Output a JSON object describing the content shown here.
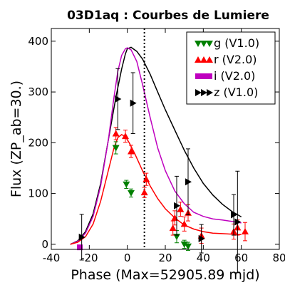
{
  "chart_data": {
    "type": "scatter",
    "title": "03D1aq : Courbes de Lumiere",
    "xlabel": "Phase (Max=52905.89 mjd)",
    "ylabel": "Flux (ZP_ab=30.)",
    "xlim": [
      -40,
      80
    ],
    "ylim": [
      -10,
      425
    ],
    "xticks": [
      -40,
      -20,
      0,
      20,
      40,
      60,
      80
    ],
    "yticks": [
      0,
      100,
      200,
      300,
      400
    ],
    "legend_position": "top-right",
    "max_marker_x": 9,
    "series": [
      {
        "name": "g (V1.0)",
        "color": "#008000",
        "marker": "triangle-down",
        "points": [
          {
            "x": -6,
            "y": 190,
            "err": 12
          },
          {
            "x": -0.5,
            "y": 118,
            "err": 8
          },
          {
            "x": 2,
            "y": 101,
            "err": 8
          },
          {
            "x": 26,
            "y": 15,
            "err": 12
          },
          {
            "x": 30,
            "y": 0,
            "err": 8
          },
          {
            "x": 32,
            "y": -4,
            "err": 8
          }
        ]
      },
      {
        "name": "r (V2.0)",
        "color": "#ff0000",
        "marker": "triangle-up",
        "points": [
          {
            "x": -6,
            "y": 218,
            "err": 12
          },
          {
            "x": -1,
            "y": 213,
            "err": 12
          },
          {
            "x": 2,
            "y": 183,
            "err": 12
          },
          {
            "x": 9,
            "y": 102,
            "err": 10
          },
          {
            "x": 10,
            "y": 128,
            "err": 12
          },
          {
            "x": 24,
            "y": 32,
            "err": 14
          },
          {
            "x": 25,
            "y": 52,
            "err": 14
          },
          {
            "x": 28,
            "y": 69,
            "err": 14
          },
          {
            "x": 30,
            "y": 40,
            "err": 14
          },
          {
            "x": 32,
            "y": 62,
            "err": 16
          },
          {
            "x": 39,
            "y": 17,
            "err": 15
          },
          {
            "x": 56,
            "y": 25,
            "err": 15
          },
          {
            "x": 58,
            "y": 33,
            "err": 15
          },
          {
            "x": 62,
            "y": 25,
            "err": 18
          }
        ]
      },
      {
        "name": "i (V2.0)",
        "color": "#bf00bf",
        "marker": "square",
        "points": [
          {
            "x": -25,
            "y": -6,
            "err": 0
          }
        ]
      },
      {
        "name": "z (V1.0)",
        "color": "#000000",
        "marker": "triangle-right",
        "points": [
          {
            "x": -24,
            "y": 14,
            "err": 45
          },
          {
            "x": -5,
            "y": 286,
            "err": 60
          },
          {
            "x": 3,
            "y": 278,
            "err": 60
          },
          {
            "x": 26,
            "y": 76,
            "err": 58
          },
          {
            "x": 32,
            "y": 123,
            "err": 65
          },
          {
            "x": 39,
            "y": 11,
            "err": 28
          },
          {
            "x": 56,
            "y": 58,
            "err": 40
          },
          {
            "x": 58,
            "y": 44,
            "err": 100
          }
        ]
      }
    ],
    "curves": [
      {
        "color": "#000000",
        "points": [
          [
            -30,
            0
          ],
          [
            -26,
            7
          ],
          [
            -22,
            25
          ],
          [
            -18,
            60
          ],
          [
            -14,
            120
          ],
          [
            -10,
            205
          ],
          [
            -6,
            290
          ],
          [
            -3,
            345
          ],
          [
            -1,
            375
          ],
          [
            0,
            385
          ],
          [
            2,
            388
          ],
          [
            5,
            380
          ],
          [
            8,
            365
          ],
          [
            12,
            335
          ],
          [
            16,
            300
          ],
          [
            20,
            265
          ],
          [
            25,
            225
          ],
          [
            30,
            185
          ],
          [
            35,
            150
          ],
          [
            40,
            120
          ],
          [
            45,
            97
          ],
          [
            50,
            79
          ],
          [
            55,
            65
          ],
          [
            60,
            54
          ]
        ]
      },
      {
        "color": "#bf00bf",
        "points": [
          [
            -30,
            0
          ],
          [
            -26,
            6
          ],
          [
            -22,
            22
          ],
          [
            -18,
            55
          ],
          [
            -14,
            115
          ],
          [
            -10,
            205
          ],
          [
            -7,
            290
          ],
          [
            -5,
            340
          ],
          [
            -3,
            372
          ],
          [
            -1,
            385
          ],
          [
            0,
            387
          ],
          [
            2,
            383
          ],
          [
            5,
            360
          ],
          [
            8,
            315
          ],
          [
            12,
            250
          ],
          [
            16,
            190
          ],
          [
            20,
            145
          ],
          [
            25,
            105
          ],
          [
            30,
            80
          ],
          [
            35,
            63
          ],
          [
            40,
            55
          ],
          [
            45,
            50
          ],
          [
            50,
            48
          ],
          [
            55,
            45
          ],
          [
            60,
            42
          ]
        ]
      },
      {
        "color": "#ff0000",
        "points": [
          [
            -30,
            0
          ],
          [
            -26,
            4
          ],
          [
            -22,
            15
          ],
          [
            -18,
            40
          ],
          [
            -14,
            85
          ],
          [
            -10,
            145
          ],
          [
            -7,
            190
          ],
          [
            -5,
            210
          ],
          [
            -3,
            216
          ],
          [
            -1,
            212
          ],
          [
            1,
            200
          ],
          [
            4,
            178
          ],
          [
            8,
            145
          ],
          [
            12,
            115
          ],
          [
            16,
            90
          ],
          [
            20,
            70
          ],
          [
            25,
            52
          ],
          [
            30,
            38
          ],
          [
            35,
            30
          ],
          [
            40,
            25
          ],
          [
            45,
            22
          ],
          [
            50,
            21
          ],
          [
            55,
            20
          ],
          [
            60,
            19
          ]
        ]
      }
    ]
  }
}
